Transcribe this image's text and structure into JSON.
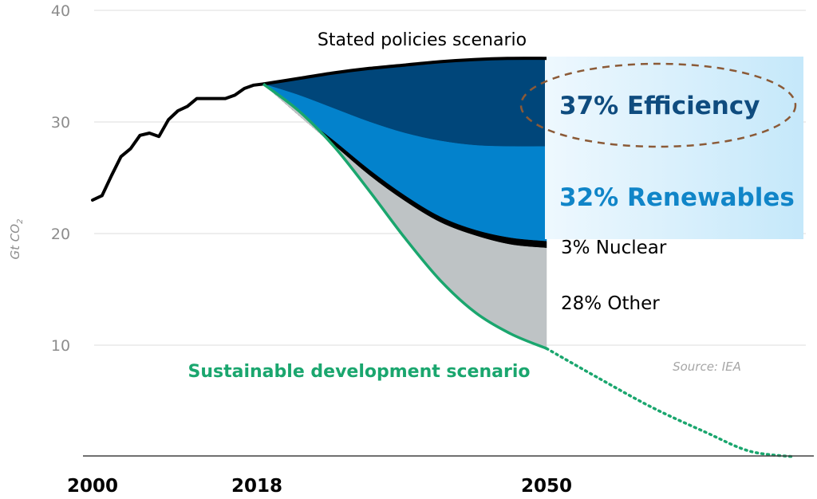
{
  "chart_data": {
    "type": "area",
    "title": "",
    "xlabel": "",
    "ylabel": "Gt CO",
    "ylabel_subscript": "2",
    "ylim": [
      0,
      40
    ],
    "xlim": [
      2000,
      2078
    ],
    "grid": true,
    "y_ticks": [
      "10",
      "20",
      "30",
      "40"
    ],
    "x_ticks": [
      "2000",
      "2018",
      "2050"
    ],
    "historical": {
      "name": "Historical emissions",
      "x": [
        2000,
        2001,
        2002,
        2003,
        2004,
        2005,
        2006,
        2007,
        2008,
        2009,
        2010,
        2011,
        2012,
        2013,
        2014,
        2015,
        2016,
        2017,
        2018
      ],
      "y": [
        23.0,
        23.4,
        25.2,
        26.9,
        27.6,
        28.8,
        29.0,
        28.7,
        30.2,
        31.0,
        31.4,
        32.1,
        32.1,
        32.1,
        32.1,
        32.4,
        33.0,
        33.3,
        33.4
      ]
    },
    "x_proj": [
      2018,
      2022,
      2026,
      2030,
      2034,
      2038,
      2042,
      2046,
      2050
    ],
    "stated_policies": [
      33.4,
      33.9,
      34.4,
      34.8,
      35.1,
      35.4,
      35.6,
      35.7,
      35.7
    ],
    "efficiency_bottom": [
      33.4,
      32.4,
      31.2,
      30.0,
      29.0,
      28.3,
      27.9,
      27.8,
      27.8
    ],
    "renewables_bottom": [
      33.4,
      30.8,
      28.3,
      25.7,
      23.4,
      21.5,
      20.3,
      19.6,
      19.3
    ],
    "nuclear_bottom": [
      33.4,
      30.6,
      27.9,
      25.2,
      22.9,
      21.0,
      19.8,
      19.0,
      18.7
    ],
    "sustainable_development": [
      33.4,
      31.0,
      27.8,
      23.8,
      19.6,
      15.8,
      12.9,
      11.0,
      9.7
    ],
    "sds_extension": {
      "x": [
        2050,
        2056,
        2062,
        2068,
        2073,
        2078
      ],
      "y": [
        9.7,
        7.0,
        4.4,
        2.2,
        0.5,
        0.0
      ]
    },
    "wedges": [
      {
        "name": "Efficiency",
        "share_pct": 37,
        "color": "#00467a"
      },
      {
        "name": "Renewables",
        "share_pct": 32,
        "color": "#0382cc"
      },
      {
        "name": "Nuclear",
        "share_pct": 3,
        "color": "#000000"
      },
      {
        "name": "Other",
        "share_pct": 28,
        "color": "#bec3c5"
      }
    ],
    "annotations": {
      "stated": "Stated policies scenario",
      "efficiency": "37% Efficiency",
      "renewables": "32% Renewables",
      "nuclear": "3% Nuclear",
      "other": "28% Other",
      "sds": "Sustainable development scenario",
      "source": "Source: IEA"
    },
    "colors": {
      "efficiency_text": "#0f4c7f",
      "renewables_text": "#1085c8",
      "sds": "#1aa66e",
      "ellipse": "#8b5a37",
      "highlight_box_left": "#eef8fe",
      "highlight_box_right": "#c5e8fa"
    }
  }
}
